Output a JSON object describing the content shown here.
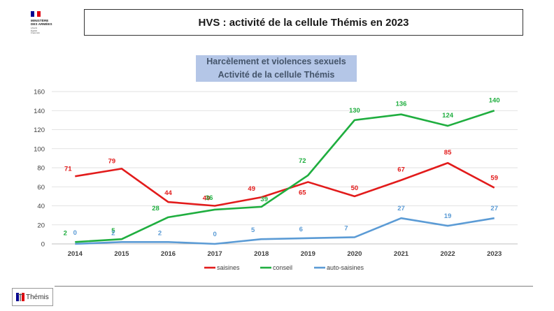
{
  "header": {
    "ministry_lines": [
      "MINISTÈRE",
      "DES ARMÉES"
    ],
    "motto_lines": [
      "Liberté",
      "Égalité",
      "Fraternité"
    ],
    "flag_colors": [
      "#000091",
      "#ffffff",
      "#e1000f"
    ],
    "title": "HVS : activité de la cellule Thémis en 2023"
  },
  "chart_data": {
    "type": "line",
    "title_lines": [
      "Harcèlement et violences sexuels",
      "Activité de la cellule Thémis"
    ],
    "categories": [
      "2014",
      "2015",
      "2016",
      "2017",
      "2018",
      "2019",
      "2020",
      "2021",
      "2022",
      "2023"
    ],
    "ylim": [
      0,
      160
    ],
    "yticks": [
      0,
      20,
      40,
      60,
      80,
      100,
      120,
      140,
      160
    ],
    "grid": true,
    "legend_position": "bottom",
    "series": [
      {
        "name": "saisines",
        "color": "#e21b1b",
        "values": [
          71,
          79,
          44,
          40,
          49,
          65,
          50,
          67,
          85,
          59
        ],
        "labels": [
          "71",
          "79",
          "44",
          "40",
          "49",
          "65",
          "50",
          "67",
          "85",
          "59"
        ]
      },
      {
        "name": "conseil",
        "color": "#1fae3f",
        "values": [
          2,
          5,
          28,
          36,
          39,
          72,
          130,
          136,
          124,
          140
        ],
        "labels": [
          "2",
          "5",
          "28",
          "36",
          "39",
          "72",
          "130",
          "136",
          "124",
          "140"
        ]
      },
      {
        "name": "auto-saisines",
        "color": "#5b9bd5",
        "values": [
          0,
          2,
          2,
          0,
          5,
          6,
          7,
          27,
          19,
          27
        ],
        "labels": [
          "0",
          "2",
          "2",
          "0",
          "5",
          "6",
          "7",
          "27",
          "19",
          "27"
        ]
      }
    ]
  },
  "footer": {
    "badge_label": "Thémis"
  }
}
